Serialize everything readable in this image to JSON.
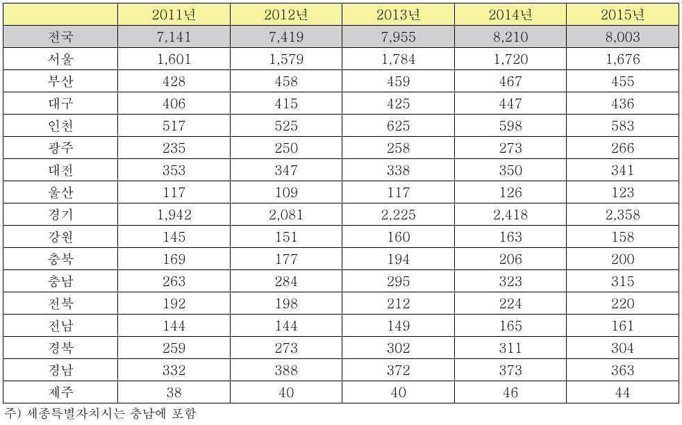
{
  "table": {
    "columns": [
      "",
      "2011년",
      "2012년",
      "2013년",
      "2014년",
      "2015년"
    ],
    "totalRow": {
      "label": "전국",
      "values": [
        "7,141",
        "7,419",
        "7,955",
        "8,210",
        "8,003"
      ]
    },
    "rows": [
      {
        "label": "서울",
        "values": [
          "1,601",
          "1,579",
          "1,784",
          "1,720",
          "1,676"
        ]
      },
      {
        "label": "부산",
        "values": [
          "428",
          "458",
          "459",
          "467",
          "455"
        ]
      },
      {
        "label": "대구",
        "values": [
          "406",
          "415",
          "425",
          "447",
          "436"
        ]
      },
      {
        "label": "인천",
        "values": [
          "517",
          "525",
          "625",
          "598",
          "583"
        ]
      },
      {
        "label": "광주",
        "values": [
          "235",
          "250",
          "258",
          "273",
          "266"
        ]
      },
      {
        "label": "대전",
        "values": [
          "353",
          "347",
          "338",
          "350",
          "341"
        ]
      },
      {
        "label": "울산",
        "values": [
          "117",
          "109",
          "117",
          "126",
          "123"
        ]
      },
      {
        "label": "경기",
        "values": [
          "1,942",
          "2,081",
          "2,225",
          "2,418",
          "2,358"
        ]
      },
      {
        "label": "강원",
        "values": [
          "145",
          "151",
          "160",
          "163",
          "158"
        ]
      },
      {
        "label": "충북",
        "values": [
          "169",
          "177",
          "194",
          "206",
          "200"
        ]
      },
      {
        "label": "충남",
        "values": [
          "263",
          "284",
          "295",
          "323",
          "315"
        ]
      },
      {
        "label": "전북",
        "values": [
          "192",
          "198",
          "212",
          "224",
          "220"
        ]
      },
      {
        "label": "전남",
        "values": [
          "144",
          "144",
          "149",
          "165",
          "161"
        ]
      },
      {
        "label": "경북",
        "values": [
          "259",
          "273",
          "302",
          "311",
          "304"
        ]
      },
      {
        "label": "경남",
        "values": [
          "332",
          "388",
          "372",
          "373",
          "363"
        ]
      },
      {
        "label": "제주",
        "values": [
          "38",
          "40",
          "40",
          "46",
          "44"
        ]
      }
    ]
  },
  "footnote": "주) 세종특별자치시는 충남에 포함",
  "style": {
    "header_bg": "#f5f5a0",
    "total_bg": "#d0d0d0",
    "border_color": "#000000",
    "font_size": 19
  }
}
